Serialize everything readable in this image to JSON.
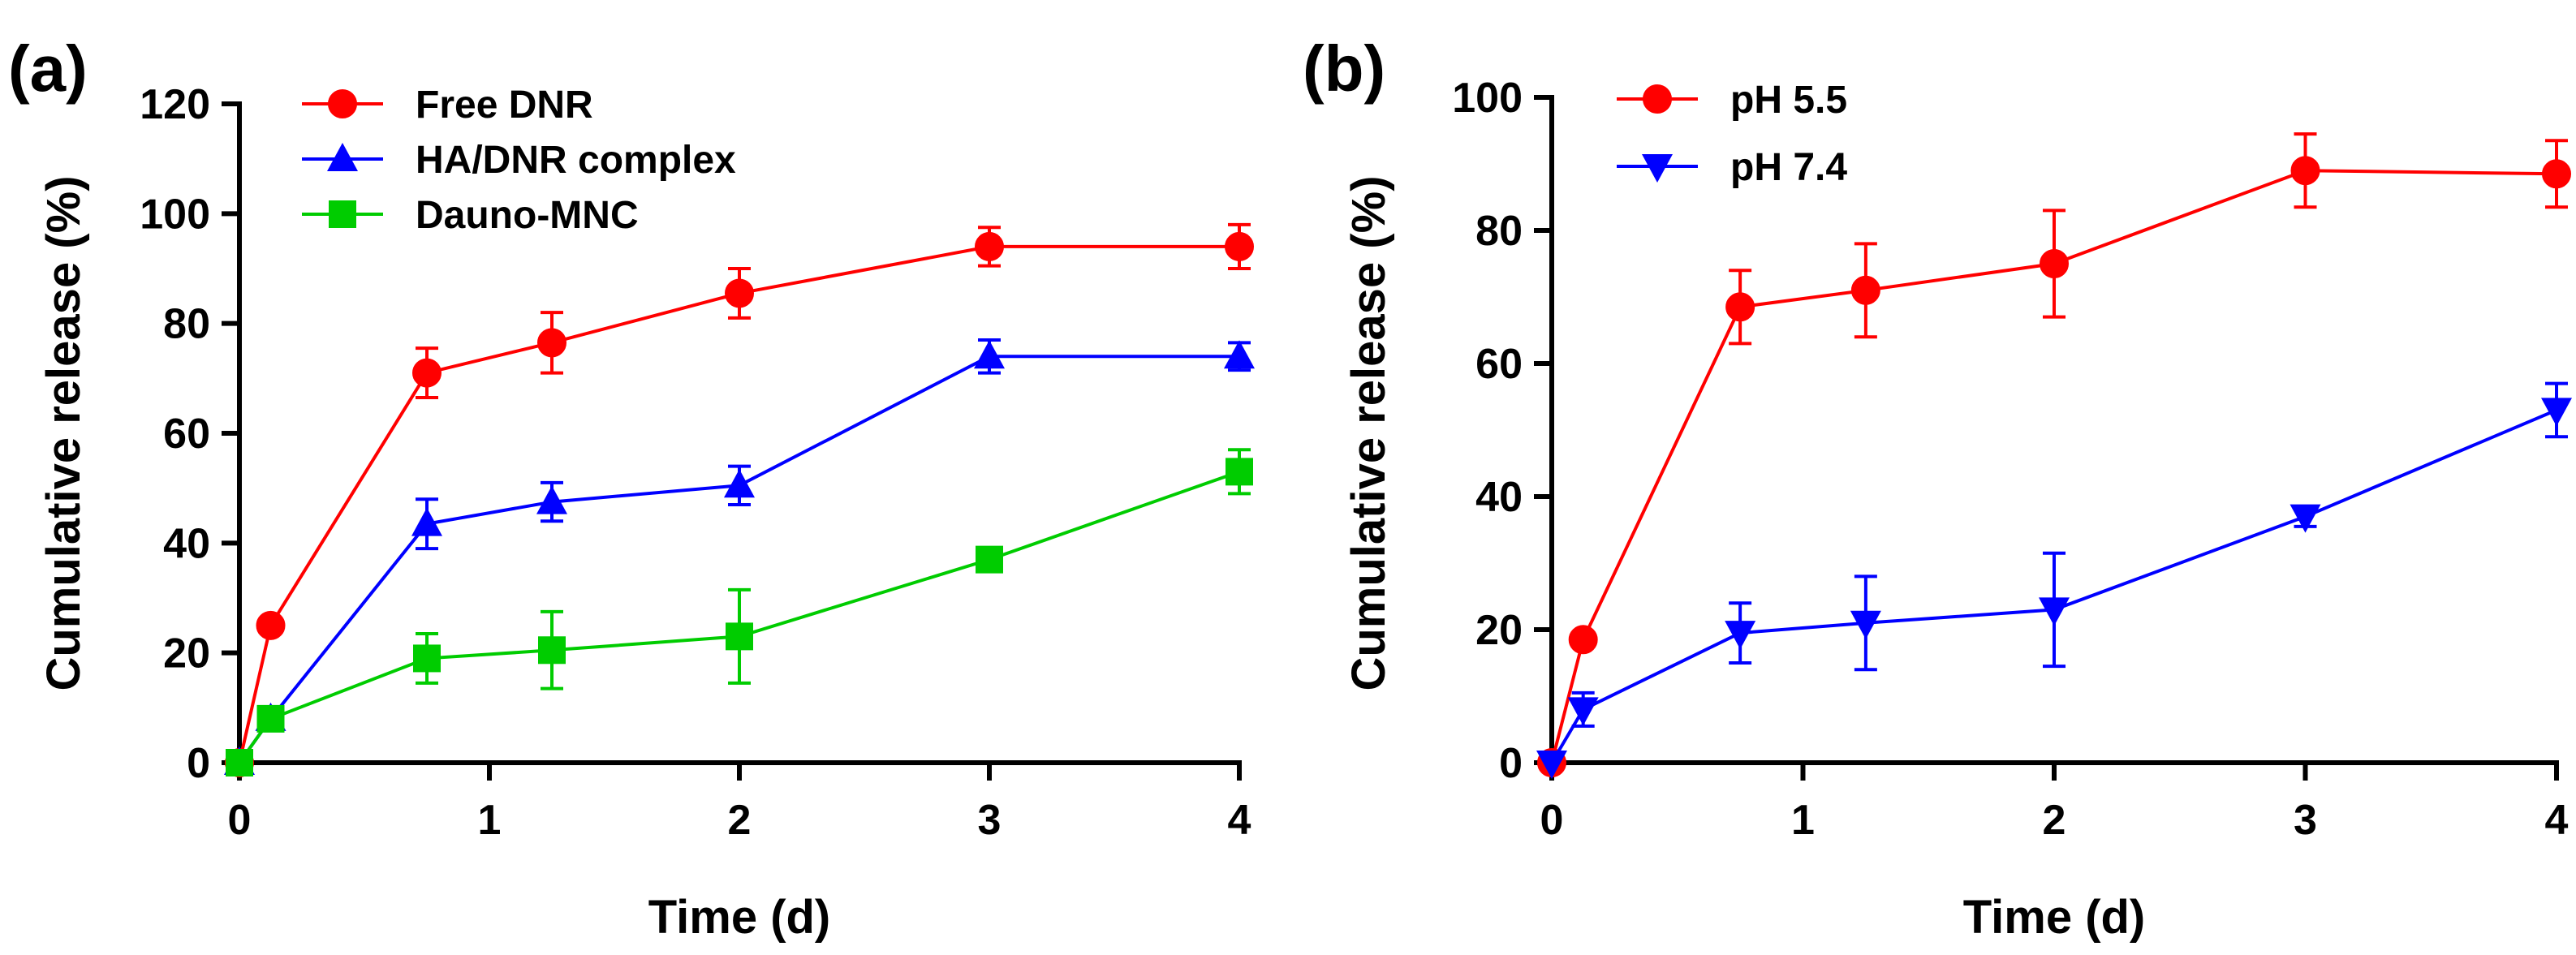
{
  "chart_data": [
    {
      "panel_label": "(a)",
      "type": "line",
      "xlabel": "Time (d)",
      "ylabel": "Cumulative release (%)",
      "xlim": [
        0,
        4
      ],
      "ylim": [
        0,
        120
      ],
      "xticks": [
        0,
        1,
        2,
        3,
        4
      ],
      "yticks": [
        0,
        20,
        40,
        60,
        80,
        100,
        120
      ],
      "legend_position": "top-left",
      "series": [
        {
          "name": "Free DNR",
          "marker": "circle",
          "color": "#ff0000",
          "x": [
            0,
            0.125,
            0.75,
            1.25,
            2,
            3,
            4
          ],
          "y": [
            0,
            25,
            71,
            76.5,
            85.5,
            94,
            94
          ],
          "err": [
            0,
            0,
            4.5,
            5.5,
            4.5,
            3.5,
            4
          ]
        },
        {
          "name": "HA/DNR complex",
          "marker": "triangle-up",
          "color": "#0000ff",
          "x": [
            0,
            0.125,
            0.75,
            1.25,
            2,
            3,
            4
          ],
          "y": [
            0,
            8,
            43.5,
            47.5,
            50.5,
            74,
            74
          ],
          "err": [
            0,
            0,
            4.5,
            3.5,
            3.5,
            3,
            2.5
          ]
        },
        {
          "name": "Dauno-MNC",
          "marker": "square",
          "color": "#00cc00",
          "x": [
            0,
            0.125,
            0.75,
            1.25,
            2,
            3,
            4
          ],
          "y": [
            0,
            8,
            19,
            20.5,
            23,
            37,
            53
          ],
          "err": [
            0,
            0,
            4.5,
            7,
            8.5,
            1.5,
            4
          ]
        }
      ]
    },
    {
      "panel_label": "(b)",
      "type": "line",
      "xlabel": "Time (d)",
      "ylabel": "Cumulative release (%)",
      "xlim": [
        0,
        4
      ],
      "ylim": [
        0,
        100
      ],
      "xticks": [
        0,
        1,
        2,
        3,
        4
      ],
      "yticks": [
        0,
        20,
        40,
        60,
        80,
        100
      ],
      "legend_position": "top-left",
      "series": [
        {
          "name": "pH 5.5",
          "marker": "circle",
          "color": "#ff0000",
          "x": [
            0,
            0.125,
            0.75,
            1.25,
            2,
            3,
            4
          ],
          "y": [
            0,
            18.5,
            68.5,
            71,
            75,
            89,
            88.5
          ],
          "err": [
            0,
            0,
            5.5,
            7,
            8,
            5.5,
            5
          ]
        },
        {
          "name": "pH 7.4",
          "marker": "triangle-down",
          "color": "#0000ff",
          "x": [
            0,
            0.125,
            0.75,
            1.25,
            2,
            3,
            4
          ],
          "y": [
            0,
            8,
            19.5,
            21,
            23,
            37,
            53
          ],
          "err": [
            0,
            2.5,
            4.5,
            7,
            8.5,
            1.5,
            4
          ]
        }
      ]
    }
  ]
}
